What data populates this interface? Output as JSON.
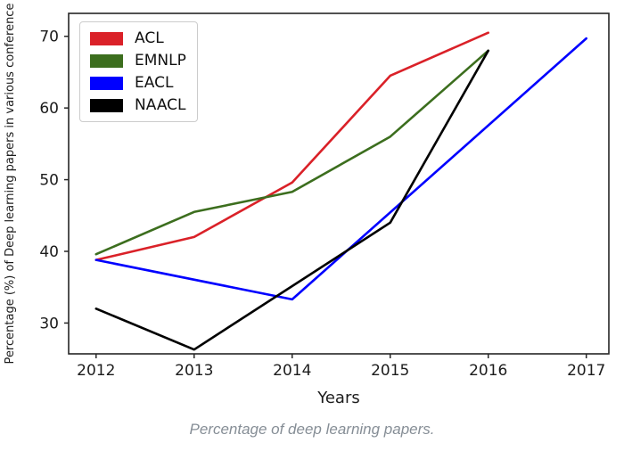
{
  "figure": {
    "caption": "Percentage of deep learning papers."
  },
  "chart_data": {
    "type": "line",
    "title": "",
    "xlabel": "Years",
    "ylabel": "Percentage (%) of Deep learning papers in various conference",
    "x_ticks": [
      "2012",
      "2013",
      "2014",
      "2015",
      "2016",
      "2017"
    ],
    "y_ticks": [
      30,
      40,
      50,
      60,
      70
    ],
    "xlim": [
      2011.72,
      2017.23
    ],
    "ylim": [
      25.7,
      73.2
    ],
    "grid": false,
    "legend_position": "upper-left",
    "series": [
      {
        "name": "ACL",
        "color": "#da2128",
        "x": [
          2012,
          2013,
          2014,
          2015,
          2016
        ],
        "y": [
          38.8,
          42.0,
          49.6,
          64.5,
          70.5
        ]
      },
      {
        "name": "EMNLP",
        "color": "#3c6e1e",
        "x": [
          2012,
          2013,
          2014,
          2015,
          2016
        ],
        "y": [
          39.6,
          45.5,
          48.3,
          56.0,
          68.0
        ]
      },
      {
        "name": "EACL",
        "color": "#0000ff",
        "x": [
          2012,
          2014,
          2017
        ],
        "y": [
          38.8,
          33.3,
          69.7
        ]
      },
      {
        "name": "NAACL",
        "color": "#000000",
        "x": [
          2012,
          2013,
          2015,
          2016
        ],
        "y": [
          32.0,
          26.3,
          44.0,
          68.0
        ]
      }
    ]
  }
}
